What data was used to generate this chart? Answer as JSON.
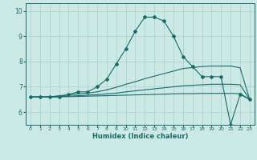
{
  "title": "",
  "xlabel": "Humidex (Indice chaleur)",
  "ylabel": "",
  "bg_color": "#cce9e6",
  "grid_color": "#aad4d0",
  "line_color": "#1a6b6b",
  "xlim": [
    -0.5,
    23.5
  ],
  "ylim": [
    5.5,
    10.3
  ],
  "yticks": [
    6,
    7,
    8,
    9,
    10
  ],
  "xticks": [
    0,
    1,
    2,
    3,
    4,
    5,
    6,
    7,
    8,
    9,
    10,
    11,
    12,
    13,
    14,
    15,
    16,
    17,
    18,
    19,
    20,
    21,
    22,
    23
  ],
  "lines": [
    {
      "x": [
        0,
        1,
        2,
        3,
        4,
        5,
        6,
        7,
        8,
        9,
        10,
        11,
        12,
        13,
        14,
        15,
        16,
        17,
        18,
        19,
        20,
        21,
        22,
        23
      ],
      "y": [
        6.6,
        6.6,
        6.6,
        6.6,
        6.7,
        6.8,
        6.8,
        7.0,
        7.3,
        7.9,
        8.5,
        9.2,
        9.75,
        9.75,
        9.6,
        9.0,
        8.2,
        7.8,
        7.4,
        7.4,
        7.4,
        5.5,
        6.7,
        6.5
      ],
      "marker": true
    },
    {
      "x": [
        0,
        1,
        2,
        3,
        4,
        5,
        6,
        7,
        8,
        9,
        10,
        11,
        12,
        13,
        14,
        15,
        16,
        17,
        18,
        19,
        20,
        21,
        22,
        23
      ],
      "y": [
        6.6,
        6.6,
        6.6,
        6.65,
        6.68,
        6.72,
        6.75,
        6.8,
        6.88,
        6.98,
        7.1,
        7.2,
        7.32,
        7.42,
        7.52,
        7.62,
        7.72,
        7.76,
        7.8,
        7.82,
        7.82,
        7.82,
        7.75,
        6.5
      ],
      "marker": false
    },
    {
      "x": [
        0,
        1,
        2,
        3,
        4,
        5,
        6,
        7,
        8,
        9,
        10,
        11,
        12,
        13,
        14,
        15,
        16,
        17,
        18,
        19,
        20,
        21,
        22,
        23
      ],
      "y": [
        6.6,
        6.6,
        6.6,
        6.62,
        6.63,
        6.65,
        6.67,
        6.69,
        6.72,
        6.75,
        6.8,
        6.84,
        6.88,
        6.92,
        6.96,
        7.0,
        7.04,
        7.06,
        7.08,
        7.1,
        7.1,
        7.1,
        7.08,
        6.5
      ],
      "marker": false
    },
    {
      "x": [
        0,
        1,
        2,
        3,
        4,
        5,
        6,
        7,
        8,
        9,
        10,
        11,
        12,
        13,
        14,
        15,
        16,
        17,
        18,
        19,
        20,
        21,
        22,
        23
      ],
      "y": [
        6.6,
        6.6,
        6.6,
        6.6,
        6.61,
        6.62,
        6.63,
        6.64,
        6.65,
        6.66,
        6.67,
        6.68,
        6.69,
        6.7,
        6.71,
        6.72,
        6.73,
        6.73,
        6.74,
        6.74,
        6.74,
        6.74,
        6.73,
        6.5
      ],
      "marker": false
    }
  ]
}
